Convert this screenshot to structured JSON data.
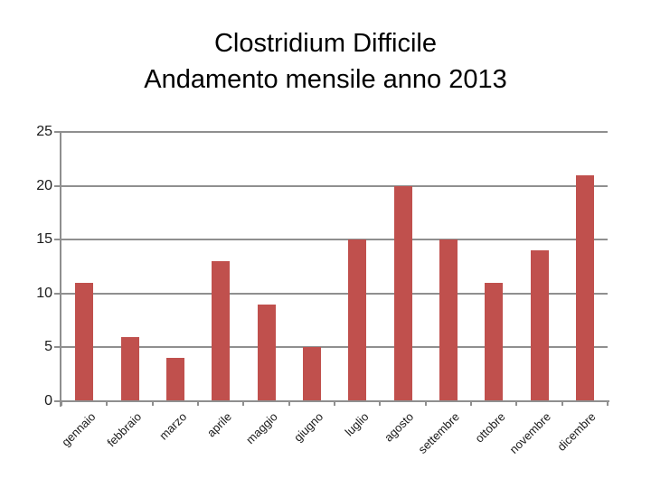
{
  "title": {
    "line1": "Clostridium Difficile",
    "line2": "Andamento mensile anno 2013"
  },
  "chart_data": {
    "type": "bar",
    "title": "Clostridium Difficile Andamento mensile anno 2013",
    "categories": [
      "gennaio",
      "febbraio",
      "marzo",
      "aprile",
      "maggio",
      "giugno",
      "luglio",
      "agosto",
      "settembre",
      "ottobre",
      "novembre",
      "dicembre"
    ],
    "values": [
      11,
      6,
      4,
      13,
      9,
      5,
      15,
      20,
      15,
      11,
      14,
      21
    ],
    "xlabel": "",
    "ylabel": "",
    "ylim": [
      0,
      25
    ],
    "yticks": [
      0,
      5,
      10,
      15,
      20,
      25
    ],
    "grid": true,
    "legend": false,
    "colors": {
      "bar": "#C0504D",
      "gridline": "#8F8F8F",
      "axis": "#8F8F8F",
      "tick_label": "#1A1A1A",
      "title": "#000000",
      "background": "#FFFFFF"
    }
  }
}
